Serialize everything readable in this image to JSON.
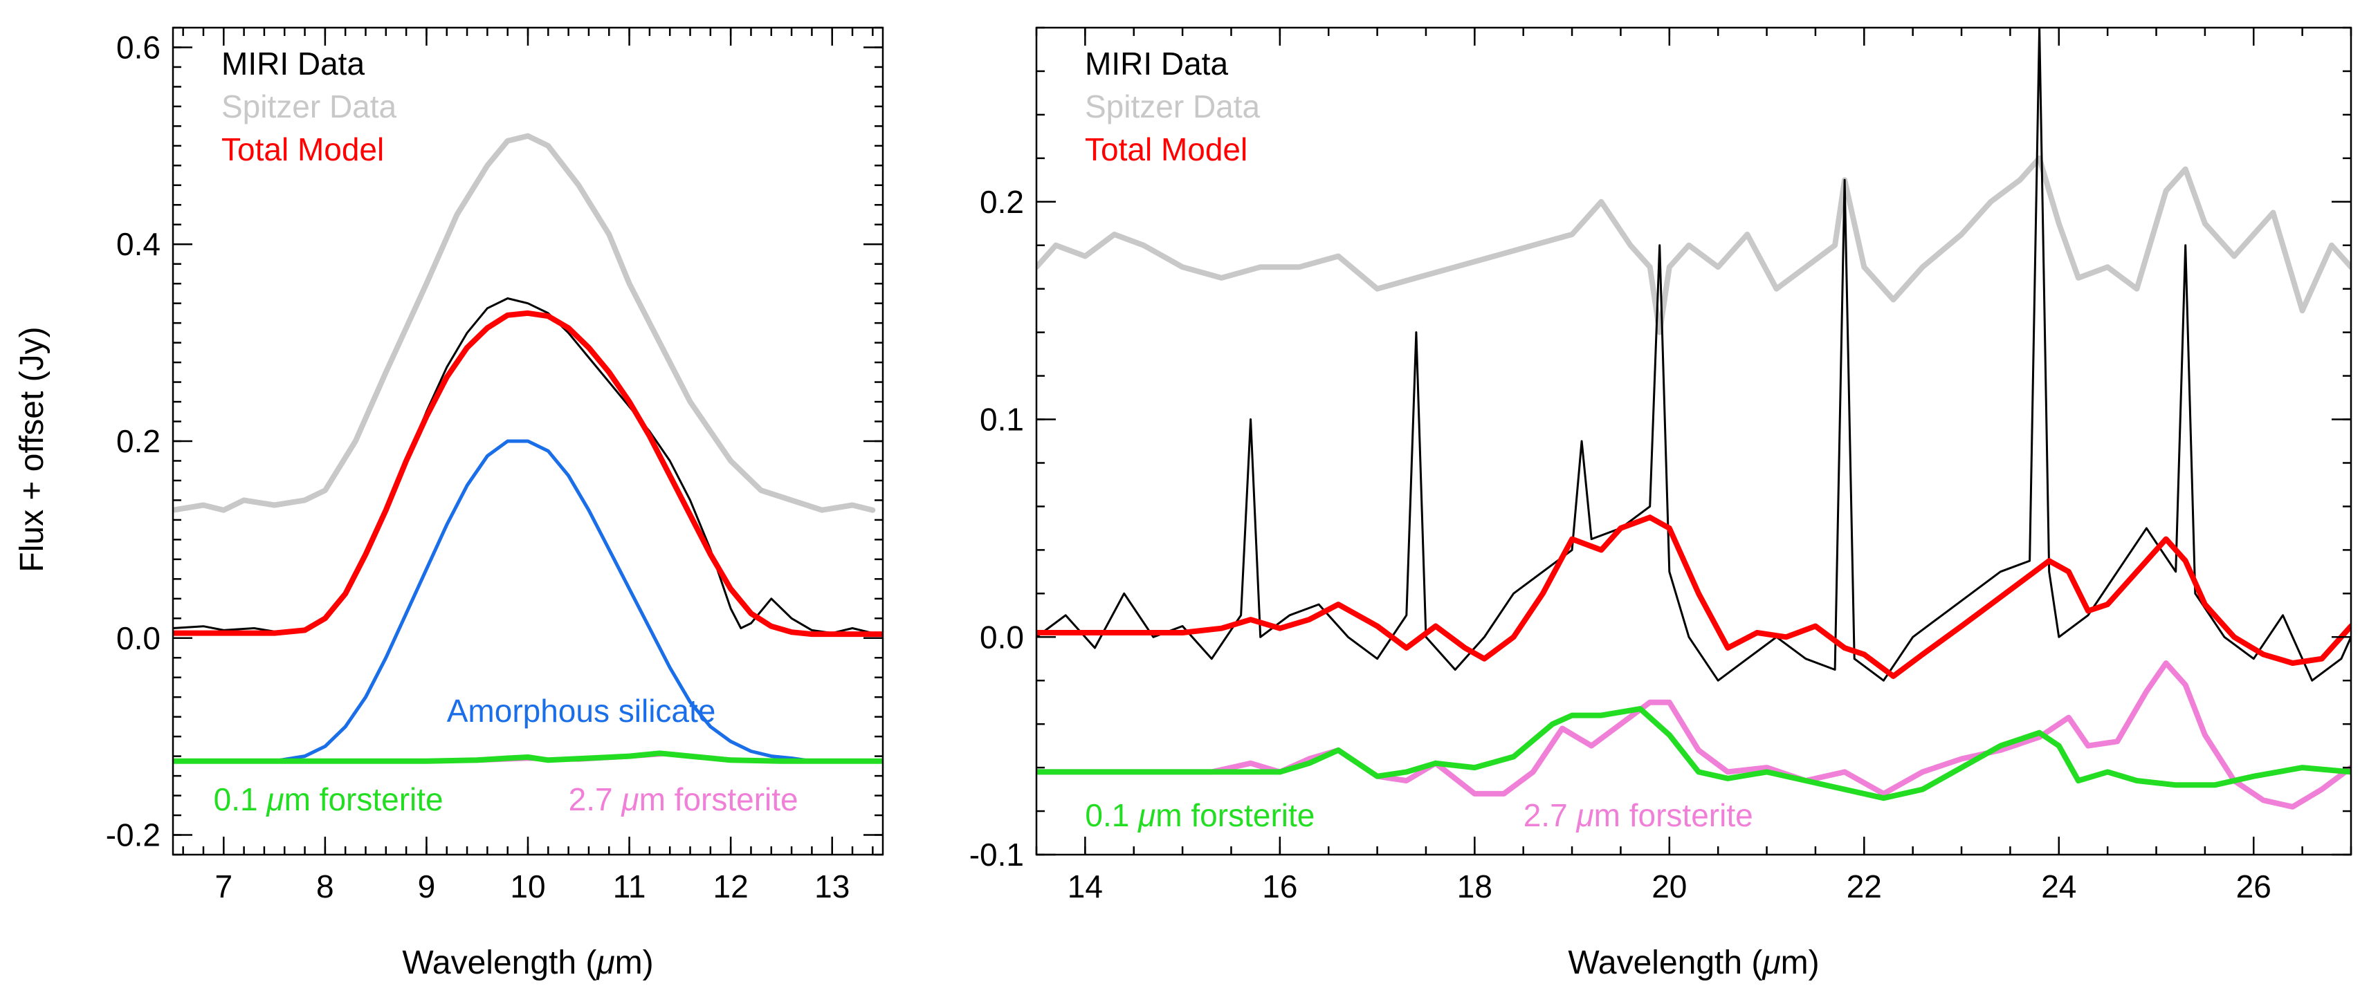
{
  "figure": {
    "ylabel_prefix": "Flux + offset (Jy)",
    "xlabel_prefix": "Wavelength (",
    "xlabel_mu": "μ",
    "xlabel_suffix": "m)"
  },
  "colors": {
    "miri": "#000000",
    "spitzer": "#c8c8c8",
    "model": "#ff0000",
    "amorphous": "#1a6ee8",
    "forsterite_small": "#22dd22",
    "forsterite_large": "#f07fd8"
  },
  "chart_data": [
    {
      "type": "line",
      "panel": "left",
      "xlabel": "Wavelength (μm)",
      "ylabel": "Flux + offset (Jy)",
      "xlim": [
        6.5,
        13.5
      ],
      "ylim": [
        -0.22,
        0.62
      ],
      "xticks": [
        7,
        8,
        9,
        10,
        11,
        12,
        13
      ],
      "yticks": [
        -0.2,
        0.0,
        0.2,
        0.4,
        0.6
      ],
      "ytick_labels": [
        "-0.2",
        "0.0",
        "0.2",
        "0.4",
        "0.6"
      ],
      "grid": false,
      "legend": {
        "position": "top-left",
        "entries": [
          {
            "label": "MIRI Data",
            "color": "#000000"
          },
          {
            "label": "Spitzer Data",
            "color": "#c8c8c8"
          },
          {
            "label": "Total Model",
            "color": "#ff0000"
          }
        ]
      },
      "annotations": [
        {
          "text": "Amorphous silicate",
          "color": "#1a6ee8",
          "x": 9.2,
          "y": -0.085
        },
        {
          "prefix": "0.1 ",
          "mu": "μ",
          "suffix": "m forsterite",
          "color": "#22dd22",
          "x": 6.9,
          "y": -0.175
        },
        {
          "prefix": "2.7 ",
          "mu": "μ",
          "suffix": "m forsterite",
          "color": "#f07fd8",
          "x": 10.4,
          "y": -0.175
        }
      ],
      "series": [
        {
          "key": "spitzer",
          "color": "#c8c8c8",
          "width": 8,
          "x": [
            6.5,
            6.8,
            7.0,
            7.2,
            7.5,
            7.8,
            8.0,
            8.3,
            8.6,
            9.0,
            9.3,
            9.6,
            9.8,
            10.0,
            10.2,
            10.5,
            10.8,
            11.0,
            11.3,
            11.6,
            12.0,
            12.3,
            12.6,
            12.9,
            13.2,
            13.4
          ],
          "y": [
            0.13,
            0.135,
            0.13,
            0.14,
            0.135,
            0.14,
            0.15,
            0.2,
            0.27,
            0.36,
            0.43,
            0.48,
            0.505,
            0.51,
            0.5,
            0.46,
            0.41,
            0.36,
            0.3,
            0.24,
            0.18,
            0.15,
            0.14,
            0.13,
            0.135,
            0.13
          ]
        },
        {
          "key": "miri",
          "color": "#000000",
          "width": 3,
          "x": [
            6.5,
            6.8,
            7.0,
            7.3,
            7.6,
            7.8,
            8.0,
            8.2,
            8.4,
            8.6,
            8.8,
            9.0,
            9.2,
            9.4,
            9.6,
            9.8,
            10.0,
            10.2,
            10.4,
            10.6,
            10.8,
            11.0,
            11.2,
            11.4,
            11.6,
            11.8,
            11.9,
            12.0,
            12.1,
            12.2,
            12.4,
            12.6,
            12.8,
            13.0,
            13.2,
            13.4
          ],
          "y": [
            0.01,
            0.012,
            0.008,
            0.01,
            0.005,
            0.008,
            0.02,
            0.045,
            0.085,
            0.13,
            0.18,
            0.23,
            0.275,
            0.31,
            0.335,
            0.345,
            0.34,
            0.33,
            0.31,
            0.285,
            0.26,
            0.235,
            0.21,
            0.18,
            0.14,
            0.09,
            0.06,
            0.03,
            0.01,
            0.015,
            0.04,
            0.02,
            0.008,
            0.005,
            0.01,
            0.005
          ]
        },
        {
          "key": "model",
          "color": "#ff0000",
          "width": 8,
          "x": [
            6.5,
            7.0,
            7.5,
            7.8,
            8.0,
            8.2,
            8.4,
            8.6,
            8.8,
            9.0,
            9.2,
            9.4,
            9.6,
            9.8,
            10.0,
            10.2,
            10.4,
            10.6,
            10.8,
            11.0,
            11.2,
            11.4,
            11.6,
            11.8,
            12.0,
            12.2,
            12.4,
            12.6,
            12.8,
            13.0,
            13.5
          ],
          "y": [
            0.005,
            0.005,
            0.005,
            0.008,
            0.02,
            0.045,
            0.085,
            0.13,
            0.18,
            0.225,
            0.265,
            0.295,
            0.315,
            0.328,
            0.33,
            0.327,
            0.315,
            0.295,
            0.27,
            0.24,
            0.205,
            0.165,
            0.125,
            0.085,
            0.05,
            0.025,
            0.012,
            0.006,
            0.004,
            0.004,
            0.004
          ]
        },
        {
          "key": "amorphous",
          "color": "#1a6ee8",
          "width": 5,
          "x": [
            6.5,
            7.0,
            7.5,
            7.8,
            8.0,
            8.2,
            8.4,
            8.6,
            8.8,
            9.0,
            9.2,
            9.4,
            9.6,
            9.8,
            10.0,
            10.2,
            10.4,
            10.6,
            10.8,
            11.0,
            11.2,
            11.4,
            11.6,
            11.8,
            12.0,
            12.2,
            12.4,
            12.6,
            12.8,
            13.0,
            13.5
          ],
          "y": [
            -0.125,
            -0.125,
            -0.125,
            -0.12,
            -0.11,
            -0.09,
            -0.06,
            -0.02,
            0.025,
            0.07,
            0.115,
            0.155,
            0.185,
            0.2,
            0.2,
            0.19,
            0.165,
            0.13,
            0.09,
            0.05,
            0.01,
            -0.03,
            -0.065,
            -0.09,
            -0.105,
            -0.115,
            -0.12,
            -0.122,
            -0.125,
            -0.125,
            -0.125
          ]
        },
        {
          "key": "forsterite_large",
          "color": "#f07fd8",
          "width": 5,
          "x": [
            6.5,
            9.5,
            10.0,
            10.5,
            11.0,
            11.4,
            11.7,
            12.0,
            12.3,
            13.5
          ],
          "y": [
            -0.125,
            -0.125,
            -0.123,
            -0.124,
            -0.121,
            -0.118,
            -0.12,
            -0.123,
            -0.125,
            -0.125
          ]
        },
        {
          "key": "forsterite_small",
          "color": "#22dd22",
          "width": 8,
          "x": [
            6.5,
            8.0,
            9.0,
            9.5,
            9.8,
            10.0,
            10.2,
            10.6,
            11.0,
            11.3,
            11.6,
            12.0,
            12.5,
            13.5
          ],
          "y": [
            -0.125,
            -0.125,
            -0.125,
            -0.124,
            -0.122,
            -0.121,
            -0.124,
            -0.122,
            -0.12,
            -0.117,
            -0.12,
            -0.124,
            -0.125,
            -0.125
          ]
        }
      ]
    },
    {
      "type": "line",
      "panel": "right",
      "xlabel": "Wavelength (μm)",
      "ylabel": "",
      "xlim": [
        13.5,
        27.0
      ],
      "ylim": [
        -0.1,
        0.28
      ],
      "xticks": [
        14,
        16,
        18,
        20,
        22,
        24,
        26
      ],
      "yticks": [
        -0.1,
        0.0,
        0.1,
        0.2
      ],
      "ytick_labels": [
        "-0.1",
        "0.0",
        "0.1",
        "0.2"
      ],
      "grid": false,
      "legend": {
        "position": "top-left",
        "entries": [
          {
            "label": "MIRI Data",
            "color": "#000000"
          },
          {
            "label": "Spitzer Data",
            "color": "#c8c8c8"
          },
          {
            "label": "Total Model",
            "color": "#ff0000"
          }
        ]
      },
      "annotations": [
        {
          "prefix": "0.1 ",
          "mu": "μ",
          "suffix": "m forsterite",
          "color": "#22dd22",
          "x": 14.0,
          "y": -0.087
        },
        {
          "prefix": "2.7 ",
          "mu": "μ",
          "suffix": "m forsterite",
          "color": "#f07fd8",
          "x": 18.5,
          "y": -0.087
        }
      ],
      "series": [
        {
          "key": "spitzer",
          "color": "#c8c8c8",
          "width": 8,
          "x": [
            13.5,
            13.7,
            14.0,
            14.3,
            14.6,
            15.0,
            15.4,
            15.8,
            16.2,
            16.6,
            17.0,
            17.4,
            17.8,
            18.2,
            18.6,
            19.0,
            19.3,
            19.6,
            19.8,
            19.9,
            20.0,
            20.2,
            20.5,
            20.8,
            21.1,
            21.4,
            21.7,
            21.8,
            22.0,
            22.3,
            22.6,
            23.0,
            23.3,
            23.6,
            23.8,
            24.0,
            24.2,
            24.5,
            24.8,
            25.1,
            25.3,
            25.5,
            25.8,
            26.2,
            26.5,
            26.8,
            27.0
          ],
          "y": [
            0.17,
            0.18,
            0.175,
            0.185,
            0.18,
            0.17,
            0.165,
            0.17,
            0.17,
            0.175,
            0.16,
            0.165,
            0.17,
            0.175,
            0.18,
            0.185,
            0.2,
            0.18,
            0.17,
            0.14,
            0.17,
            0.18,
            0.17,
            0.185,
            0.16,
            0.17,
            0.18,
            0.21,
            0.17,
            0.155,
            0.17,
            0.185,
            0.2,
            0.21,
            0.22,
            0.19,
            0.165,
            0.17,
            0.16,
            0.205,
            0.215,
            0.19,
            0.175,
            0.195,
            0.15,
            0.18,
            0.17
          ]
        },
        {
          "key": "miri",
          "color": "#000000",
          "width": 3,
          "x": [
            13.5,
            13.8,
            14.1,
            14.4,
            14.7,
            15.0,
            15.3,
            15.6,
            15.7,
            15.8,
            16.1,
            16.4,
            16.7,
            17.0,
            17.3,
            17.4,
            17.5,
            17.8,
            18.1,
            18.4,
            18.7,
            19.0,
            19.1,
            19.2,
            19.5,
            19.8,
            19.9,
            20.0,
            20.2,
            20.5,
            20.8,
            21.1,
            21.4,
            21.7,
            21.8,
            21.9,
            22.2,
            22.5,
            22.8,
            23.1,
            23.4,
            23.7,
            23.8,
            23.9,
            24.0,
            24.3,
            24.6,
            24.9,
            25.2,
            25.3,
            25.4,
            25.7,
            26.0,
            26.3,
            26.6,
            26.9,
            27.0
          ],
          "y": [
            0.0,
            0.01,
            -0.005,
            0.02,
            0.0,
            0.005,
            -0.01,
            0.01,
            0.1,
            0.0,
            0.01,
            0.015,
            0.0,
            -0.01,
            0.01,
            0.14,
            0.0,
            -0.015,
            0.0,
            0.02,
            0.03,
            0.04,
            0.09,
            0.045,
            0.05,
            0.06,
            0.18,
            0.03,
            0.0,
            -0.02,
            -0.01,
            0.0,
            -0.01,
            -0.015,
            0.21,
            -0.01,
            -0.02,
            0.0,
            0.01,
            0.02,
            0.03,
            0.035,
            0.28,
            0.03,
            0.0,
            0.01,
            0.03,
            0.05,
            0.03,
            0.18,
            0.02,
            0.0,
            -0.01,
            0.01,
            -0.02,
            -0.01,
            0.0
          ]
        },
        {
          "key": "model",
          "color": "#ff0000",
          "width": 8,
          "x": [
            13.5,
            14.0,
            14.5,
            15.0,
            15.4,
            15.7,
            16.0,
            16.3,
            16.6,
            17.0,
            17.3,
            17.6,
            17.9,
            18.1,
            18.4,
            18.7,
            19.0,
            19.3,
            19.5,
            19.8,
            20.0,
            20.3,
            20.6,
            20.9,
            21.2,
            21.5,
            21.8,
            22.0,
            22.3,
            22.6,
            23.0,
            23.3,
            23.6,
            23.9,
            24.1,
            24.3,
            24.5,
            24.8,
            25.1,
            25.3,
            25.5,
            25.8,
            26.1,
            26.4,
            26.7,
            27.0
          ],
          "y": [
            0.002,
            0.002,
            0.002,
            0.002,
            0.004,
            0.008,
            0.004,
            0.008,
            0.015,
            0.005,
            -0.005,
            0.005,
            -0.005,
            -0.01,
            0.0,
            0.02,
            0.045,
            0.04,
            0.05,
            0.055,
            0.05,
            0.02,
            -0.005,
            0.002,
            0.0,
            0.005,
            -0.005,
            -0.008,
            -0.018,
            -0.008,
            0.005,
            0.015,
            0.025,
            0.035,
            0.03,
            0.012,
            0.015,
            0.03,
            0.045,
            0.035,
            0.015,
            0.0,
            -0.008,
            -0.012,
            -0.01,
            0.005
          ]
        },
        {
          "key": "forsterite_large",
          "color": "#f07fd8",
          "width": 8,
          "x": [
            13.5,
            14.5,
            15.3,
            15.7,
            16.0,
            16.3,
            16.6,
            17.0,
            17.3,
            17.6,
            18.0,
            18.3,
            18.6,
            18.9,
            19.2,
            19.5,
            19.8,
            20.0,
            20.3,
            20.6,
            21.0,
            21.4,
            21.8,
            22.2,
            22.6,
            23.0,
            23.4,
            23.8,
            24.1,
            24.3,
            24.6,
            24.9,
            25.1,
            25.3,
            25.5,
            25.8,
            26.1,
            26.4,
            26.7,
            27.0
          ],
          "y": [
            -0.062,
            -0.062,
            -0.062,
            -0.058,
            -0.062,
            -0.056,
            -0.052,
            -0.064,
            -0.066,
            -0.058,
            -0.072,
            -0.072,
            -0.062,
            -0.042,
            -0.05,
            -0.04,
            -0.03,
            -0.03,
            -0.052,
            -0.062,
            -0.06,
            -0.066,
            -0.062,
            -0.072,
            -0.062,
            -0.056,
            -0.052,
            -0.046,
            -0.037,
            -0.05,
            -0.048,
            -0.025,
            -0.012,
            -0.022,
            -0.045,
            -0.066,
            -0.075,
            -0.078,
            -0.07,
            -0.06
          ]
        },
        {
          "key": "forsterite_small",
          "color": "#22dd22",
          "width": 8,
          "x": [
            13.5,
            14.5,
            15.5,
            16.0,
            16.3,
            16.6,
            17.0,
            17.3,
            17.6,
            18.0,
            18.4,
            18.8,
            19.0,
            19.3,
            19.7,
            20.0,
            20.3,
            20.6,
            21.0,
            21.4,
            21.8,
            22.2,
            22.6,
            23.0,
            23.4,
            23.8,
            24.0,
            24.2,
            24.5,
            24.8,
            25.2,
            25.6,
            26.0,
            26.5,
            27.0
          ],
          "y": [
            -0.062,
            -0.062,
            -0.062,
            -0.062,
            -0.058,
            -0.052,
            -0.064,
            -0.062,
            -0.058,
            -0.06,
            -0.055,
            -0.04,
            -0.036,
            -0.036,
            -0.033,
            -0.045,
            -0.062,
            -0.065,
            -0.062,
            -0.066,
            -0.07,
            -0.074,
            -0.07,
            -0.06,
            -0.05,
            -0.044,
            -0.05,
            -0.066,
            -0.062,
            -0.066,
            -0.068,
            -0.068,
            -0.064,
            -0.06,
            -0.062
          ]
        }
      ]
    }
  ]
}
